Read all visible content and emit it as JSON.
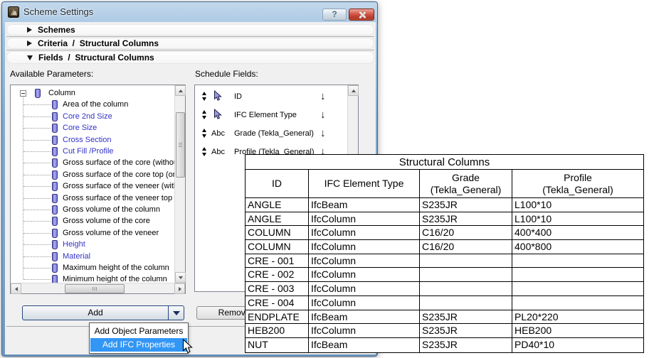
{
  "window": {
    "title": "Scheme Settings",
    "help_glyph": "?"
  },
  "sections": [
    {
      "id": "schemes",
      "label": "Schemes",
      "expanded": false
    },
    {
      "id": "criteria",
      "label": "Criteria  /  Structural Columns",
      "expanded": false
    },
    {
      "id": "fields",
      "label": "Fields  /  Structural Columns",
      "expanded": true
    }
  ],
  "fields_panel": {
    "available_label": "Available Parameters:",
    "schedule_label": "Schedule Fields:",
    "tree_root": "Column",
    "tree_items": [
      {
        "label": "Area of the column",
        "blue": false
      },
      {
        "label": "Core 2nd Size",
        "blue": true
      },
      {
        "label": "Core Size",
        "blue": true
      },
      {
        "label": "Cross Section",
        "blue": true
      },
      {
        "label": "Cut Fill /Profile",
        "blue": true
      },
      {
        "label": "Gross surface of the core (without t",
        "blue": false
      },
      {
        "label": "Gross surface of the core top (or bo",
        "blue": false
      },
      {
        "label": "Gross surface of the veneer (witho",
        "blue": false
      },
      {
        "label": "Gross surface of the veneer top (or",
        "blue": false
      },
      {
        "label": "Gross volume of the column",
        "blue": false
      },
      {
        "label": "Gross volume of the core",
        "blue": false
      },
      {
        "label": "Gross volume of the veneer",
        "blue": false
      },
      {
        "label": "Height",
        "blue": true
      },
      {
        "label": "Material",
        "blue": true
      },
      {
        "label": "Maximum height of the column",
        "blue": false
      },
      {
        "label": "Minimum height of the column",
        "blue": false
      }
    ],
    "schedule_fields": [
      {
        "label": "ID",
        "icon": "cursor",
        "blue": true
      },
      {
        "label": "IFC Element Type",
        "icon": "cursor",
        "blue": false
      },
      {
        "label": "Grade (Tekla_General)",
        "icon": "abc",
        "blue": false
      },
      {
        "label": "Profile (Tekla_General)",
        "icon": "abc",
        "blue": false
      }
    ],
    "abc_glyph": "Abc",
    "down_arrow_glyph": "↓",
    "add_label": "Add",
    "remove_label": "Remove"
  },
  "menu": {
    "items": [
      {
        "label": "Add Object Parameters",
        "selected": false
      },
      {
        "label": "Add IFC Properties",
        "selected": true
      }
    ]
  },
  "table": {
    "title": "Structural Columns",
    "headers": [
      [
        "ID"
      ],
      [
        "IFC Element Type"
      ],
      [
        "Grade",
        "(Tekla_General)"
      ],
      [
        "Profile",
        "(Tekla_General)"
      ]
    ],
    "rows": [
      [
        "ANGLE",
        "IfcBeam",
        "S235JR",
        "L100*10"
      ],
      [
        "ANGLE",
        "IfcColumn",
        "S235JR",
        "L100*10"
      ],
      [
        "COLUMN",
        "IfcColumn",
        "C16/20",
        "400*400"
      ],
      [
        "COLUMN",
        "IfcColumn",
        "C16/20",
        "400*800"
      ],
      [
        "CRE - 001",
        "IfcColumn",
        "",
        ""
      ],
      [
        "CRE - 002",
        "IfcColumn",
        "",
        ""
      ],
      [
        "CRE - 003",
        "IfcColumn",
        "",
        ""
      ],
      [
        "CRE - 004",
        "IfcColumn",
        "",
        ""
      ],
      [
        "ENDPLATE",
        "IfcBeam",
        "S235JR",
        "PL20*220"
      ],
      [
        "HEB200",
        "IfcColumn",
        "S235JR",
        "HEB200"
      ],
      [
        "NUT",
        "IfcBeam",
        "S235JR",
        "PD40*10"
      ]
    ]
  },
  "colors": {
    "selection_blue": "#3296f5",
    "parameter_link_blue": "#3232c8",
    "close_button_red": "#b13a2a"
  }
}
